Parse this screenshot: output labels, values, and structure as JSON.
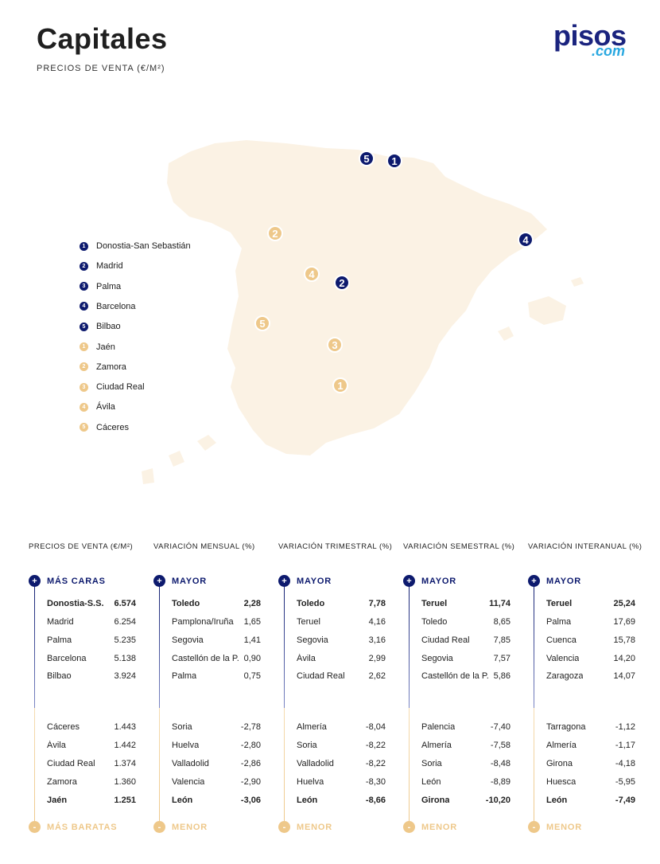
{
  "header": {
    "title": "Capitales",
    "subtitle": "PRECIOS DE VENTA (€/M²)",
    "logo_main": "pisos",
    "logo_com": ".com"
  },
  "colors": {
    "navy": "#0d1a6e",
    "gold": "#eec88a",
    "map_fill": "#fbf2e4",
    "logo_blue": "#29a8e0"
  },
  "legend": [
    {
      "n": "1",
      "label": "Donostia-San Sebastián",
      "kind": "blue"
    },
    {
      "n": "2",
      "label": "Madrid",
      "kind": "blue"
    },
    {
      "n": "3",
      "label": "Palma",
      "kind": "blue"
    },
    {
      "n": "4",
      "label": "Barcelona",
      "kind": "blue"
    },
    {
      "n": "5",
      "label": "Bilbao",
      "kind": "blue"
    },
    {
      "n": "1",
      "label": "Jaén",
      "kind": "yellow"
    },
    {
      "n": "2",
      "label": "Zamora",
      "kind": "yellow"
    },
    {
      "n": "3",
      "label": "Ciudad Real",
      "kind": "yellow"
    },
    {
      "n": "4",
      "label": "Ávila",
      "kind": "yellow"
    },
    {
      "n": "5",
      "label": "Cáceres",
      "kind": "yellow"
    }
  ],
  "map_markers": [
    {
      "n": "5",
      "kind": "blue",
      "city": "Bilbao"
    },
    {
      "n": "1",
      "kind": "blue",
      "city": "Donostia-San Sebastián"
    },
    {
      "n": "4",
      "kind": "blue",
      "city": "Barcelona"
    },
    {
      "n": "2",
      "kind": "blue",
      "city": "Madrid"
    },
    {
      "n": "2",
      "kind": "yellow",
      "city": "Zamora"
    },
    {
      "n": "4",
      "kind": "yellow",
      "city": "Ávila"
    },
    {
      "n": "5",
      "kind": "yellow",
      "city": "Cáceres"
    },
    {
      "n": "3",
      "kind": "yellow",
      "city": "Ciudad Real"
    },
    {
      "n": "1",
      "kind": "yellow",
      "city": "Jaén"
    }
  ],
  "columns": [
    {
      "heading": "PRECIOS DE VENTA (€/M²)",
      "top_label": "MÁS CARAS",
      "bottom_label": "MÁS BARATAS",
      "top": [
        {
          "name": "Donostia-S.S.",
          "value": "6.574",
          "bold": true
        },
        {
          "name": "Madrid",
          "value": "6.254"
        },
        {
          "name": "Palma",
          "value": "5.235"
        },
        {
          "name": "Barcelona",
          "value": "5.138"
        },
        {
          "name": "Bilbao",
          "value": "3.924"
        }
      ],
      "bottom": [
        {
          "name": "Cáceres",
          "value": "1.443"
        },
        {
          "name": "Ávila",
          "value": "1.442"
        },
        {
          "name": "Ciudad Real",
          "value": "1.374"
        },
        {
          "name": "Zamora",
          "value": "1.360"
        },
        {
          "name": "Jaén",
          "value": "1.251",
          "bold": true
        }
      ]
    },
    {
      "heading": "VARIACIÓN MENSUAL (%)",
      "top_label": "MAYOR",
      "bottom_label": "MENOR",
      "top": [
        {
          "name": "Toledo",
          "value": "2,28",
          "bold": true
        },
        {
          "name": "Pamplona/Iruña",
          "value": "1,65"
        },
        {
          "name": "Segovia",
          "value": "1,41"
        },
        {
          "name": "Castellón de la P.",
          "value": "0,90"
        },
        {
          "name": "Palma",
          "value": "0,75"
        }
      ],
      "bottom": [
        {
          "name": "Soria",
          "value": "-2,78"
        },
        {
          "name": "Huelva",
          "value": "-2,80"
        },
        {
          "name": "Valladolid",
          "value": "-2,86"
        },
        {
          "name": "Valencia",
          "value": "-2,90"
        },
        {
          "name": "León",
          "value": "-3,06",
          "bold": true
        }
      ]
    },
    {
      "heading": "VARIACIÓN TRIMESTRAL (%)",
      "top_label": "MAYOR",
      "bottom_label": "MENOR",
      "top": [
        {
          "name": "Toledo",
          "value": "7,78",
          "bold": true
        },
        {
          "name": "Teruel",
          "value": "4,16"
        },
        {
          "name": "Segovia",
          "value": "3,16"
        },
        {
          "name": "Ávila",
          "value": "2,99"
        },
        {
          "name": "Ciudad Real",
          "value": "2,62"
        }
      ],
      "bottom": [
        {
          "name": "Almería",
          "value": "-8,04"
        },
        {
          "name": "Soria",
          "value": "-8,22"
        },
        {
          "name": "Valladolid",
          "value": "-8,22"
        },
        {
          "name": "Huelva",
          "value": "-8,30"
        },
        {
          "name": "León",
          "value": "-8,66",
          "bold": true
        }
      ]
    },
    {
      "heading": "VARIACIÓN SEMESTRAL (%)",
      "top_label": "MAYOR",
      "bottom_label": "MENOR",
      "top": [
        {
          "name": "Teruel",
          "value": "11,74",
          "bold": true
        },
        {
          "name": "Toledo",
          "value": "8,65"
        },
        {
          "name": "Ciudad Real",
          "value": "7,85"
        },
        {
          "name": "Segovia",
          "value": "7,57"
        },
        {
          "name": "Castellón de la P.",
          "value": "5,86"
        }
      ],
      "bottom": [
        {
          "name": "Palencia",
          "value": "-7,40"
        },
        {
          "name": "Almería",
          "value": "-7,58"
        },
        {
          "name": "Soria",
          "value": "-8,48"
        },
        {
          "name": "León",
          "value": "-8,89"
        },
        {
          "name": "Girona",
          "value": "-10,20",
          "bold": true
        }
      ]
    },
    {
      "heading": "VARIACIÓN INTERANUAL (%)",
      "top_label": "MAYOR",
      "bottom_label": "MENOR",
      "top": [
        {
          "name": "Teruel",
          "value": "25,24",
          "bold": true
        },
        {
          "name": "Palma",
          "value": "17,69"
        },
        {
          "name": "Cuenca",
          "value": "15,78"
        },
        {
          "name": "Valencia",
          "value": "14,20"
        },
        {
          "name": "Zaragoza",
          "value": "14,07"
        }
      ],
      "bottom": [
        {
          "name": "Tarragona",
          "value": "-1,12"
        },
        {
          "name": "Almería",
          "value": "-1,17"
        },
        {
          "name": "Girona",
          "value": "-4,18"
        },
        {
          "name": "Huesca",
          "value": "-5,95"
        },
        {
          "name": "León",
          "value": "-7,49",
          "bold": true
        }
      ]
    }
  ]
}
